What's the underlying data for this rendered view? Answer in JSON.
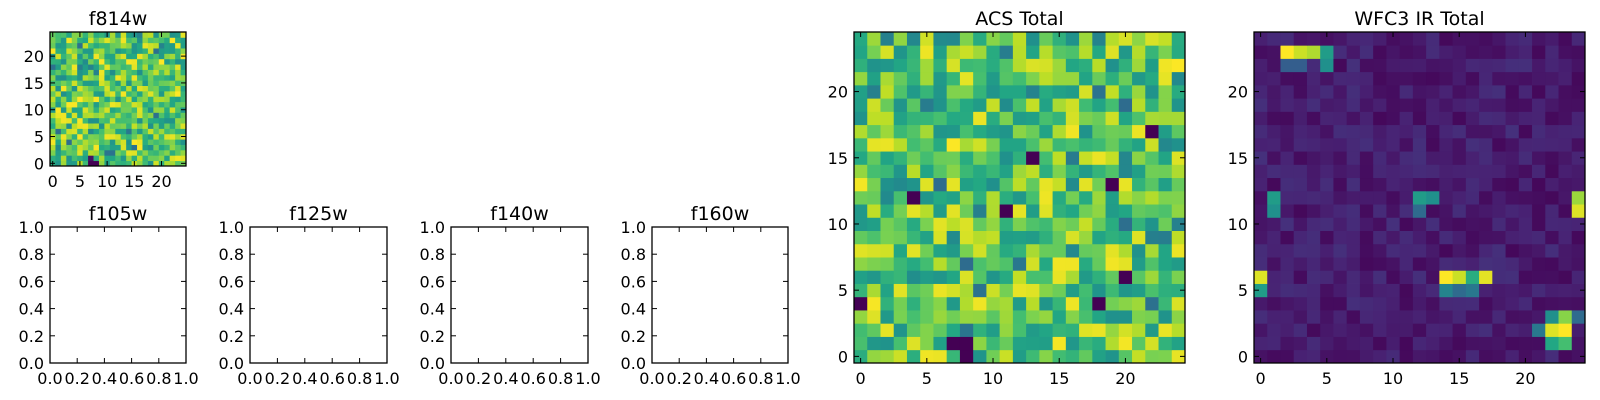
{
  "chart_data": [
    {
      "type": "heatmap",
      "title": "f814w",
      "xlabel": "",
      "ylabel": "",
      "xlim": [
        -0.5,
        24.5
      ],
      "ylim": [
        -0.5,
        24.5
      ],
      "xticks": [
        0,
        5,
        10,
        15,
        20
      ],
      "yticks": [
        0,
        5,
        10,
        15,
        20
      ],
      "grid": false,
      "colormap": "viridis",
      "grid_size": 25,
      "seed": 11,
      "clim": [
        0,
        1
      ],
      "features": [
        [
          7,
          0,
          0.0
        ],
        [
          8,
          0,
          0.0
        ],
        [
          7,
          1,
          0.05
        ]
      ]
    },
    {
      "type": "empty",
      "title": "f105w",
      "xlim": [
        0,
        1
      ],
      "ylim": [
        0,
        1
      ],
      "xticks": [
        "0.0",
        "0.2",
        "0.4",
        "0.6",
        "0.8",
        "1.0"
      ],
      "yticks": [
        "0.0",
        "0.2",
        "0.4",
        "0.6",
        "0.8",
        "1.0"
      ]
    },
    {
      "type": "empty",
      "title": "f125w",
      "xlim": [
        0,
        1
      ],
      "ylim": [
        0,
        1
      ],
      "xticks": [
        "0.0",
        "0.2",
        "0.4",
        "0.6",
        "0.8",
        "1.0"
      ],
      "yticks": [
        "0.0",
        "0.2",
        "0.4",
        "0.6",
        "0.8",
        "1.0"
      ]
    },
    {
      "type": "empty",
      "title": "f140w",
      "xlim": [
        0,
        1
      ],
      "ylim": [
        0,
        1
      ],
      "xticks": [
        "0.0",
        "0.2",
        "0.4",
        "0.6",
        "0.8",
        "1.0"
      ],
      "yticks": [
        "0.0",
        "0.2",
        "0.4",
        "0.6",
        "0.8",
        "1.0"
      ]
    },
    {
      "type": "empty",
      "title": "f160w",
      "xlim": [
        0,
        1
      ],
      "ylim": [
        0,
        1
      ],
      "xticks": [
        "0.0",
        "0.2",
        "0.4",
        "0.6",
        "0.8",
        "1.0"
      ],
      "yticks": [
        "0.0",
        "0.2",
        "0.4",
        "0.6",
        "0.8",
        "1.0"
      ]
    },
    {
      "type": "heatmap",
      "title": "ACS Total",
      "xlim": [
        -0.5,
        24.5
      ],
      "ylim": [
        -0.5,
        24.5
      ],
      "xticks": [
        0,
        5,
        10,
        15,
        20
      ],
      "yticks": [
        0,
        5,
        10,
        15,
        20
      ],
      "grid": false,
      "colormap": "viridis",
      "grid_size": 25,
      "seed": 29,
      "clim": [
        0,
        1
      ],
      "features": [
        [
          7,
          1,
          0.0
        ],
        [
          8,
          1,
          0.0
        ],
        [
          8,
          0,
          0.0
        ],
        [
          13,
          15,
          0.0
        ],
        [
          18,
          4,
          0.0
        ],
        [
          19,
          13,
          0.0
        ],
        [
          22,
          17,
          0.0
        ],
        [
          4,
          12,
          0.0
        ],
        [
          11,
          11,
          0.0
        ],
        [
          0,
          4,
          0.0
        ],
        [
          20,
          6,
          0.0
        ]
      ]
    },
    {
      "type": "heatmap",
      "title": "WFC3 IR Total",
      "xlim": [
        -0.5,
        24.5
      ],
      "ylim": [
        -0.5,
        24.5
      ],
      "xticks": [
        0,
        5,
        10,
        15,
        20
      ],
      "yticks": [
        0,
        5,
        10,
        15,
        20
      ],
      "grid": false,
      "colormap": "viridis",
      "grid_size": 25,
      "seed": 53,
      "clim": [
        0,
        1
      ],
      "background": "low",
      "features": [
        [
          2,
          23,
          1.0
        ],
        [
          3,
          23,
          0.92
        ],
        [
          4,
          23,
          0.88
        ],
        [
          5,
          23,
          0.55
        ],
        [
          5,
          22,
          0.5
        ],
        [
          2,
          22,
          0.3
        ],
        [
          3,
          22,
          0.3
        ],
        [
          1,
          12,
          0.55
        ],
        [
          1,
          11,
          0.5
        ],
        [
          12,
          12,
          0.55
        ],
        [
          13,
          12,
          0.5
        ],
        [
          12,
          11,
          0.35
        ],
        [
          24,
          12,
          0.85
        ],
        [
          24,
          11,
          0.95
        ],
        [
          0,
          6,
          0.95
        ],
        [
          0,
          5,
          0.55
        ],
        [
          14,
          6,
          1.0
        ],
        [
          15,
          6,
          0.92
        ],
        [
          16,
          6,
          0.62
        ],
        [
          17,
          6,
          0.96
        ],
        [
          14,
          5,
          0.45
        ],
        [
          15,
          5,
          0.35
        ],
        [
          16,
          5,
          0.4
        ],
        [
          22,
          3,
          0.5
        ],
        [
          23,
          3,
          0.82
        ],
        [
          22,
          2,
          0.95
        ],
        [
          23,
          2,
          1.0
        ],
        [
          22,
          1,
          0.6
        ],
        [
          23,
          1,
          0.7
        ],
        [
          21,
          2,
          0.4
        ],
        [
          24,
          3,
          0.35
        ]
      ]
    }
  ]
}
